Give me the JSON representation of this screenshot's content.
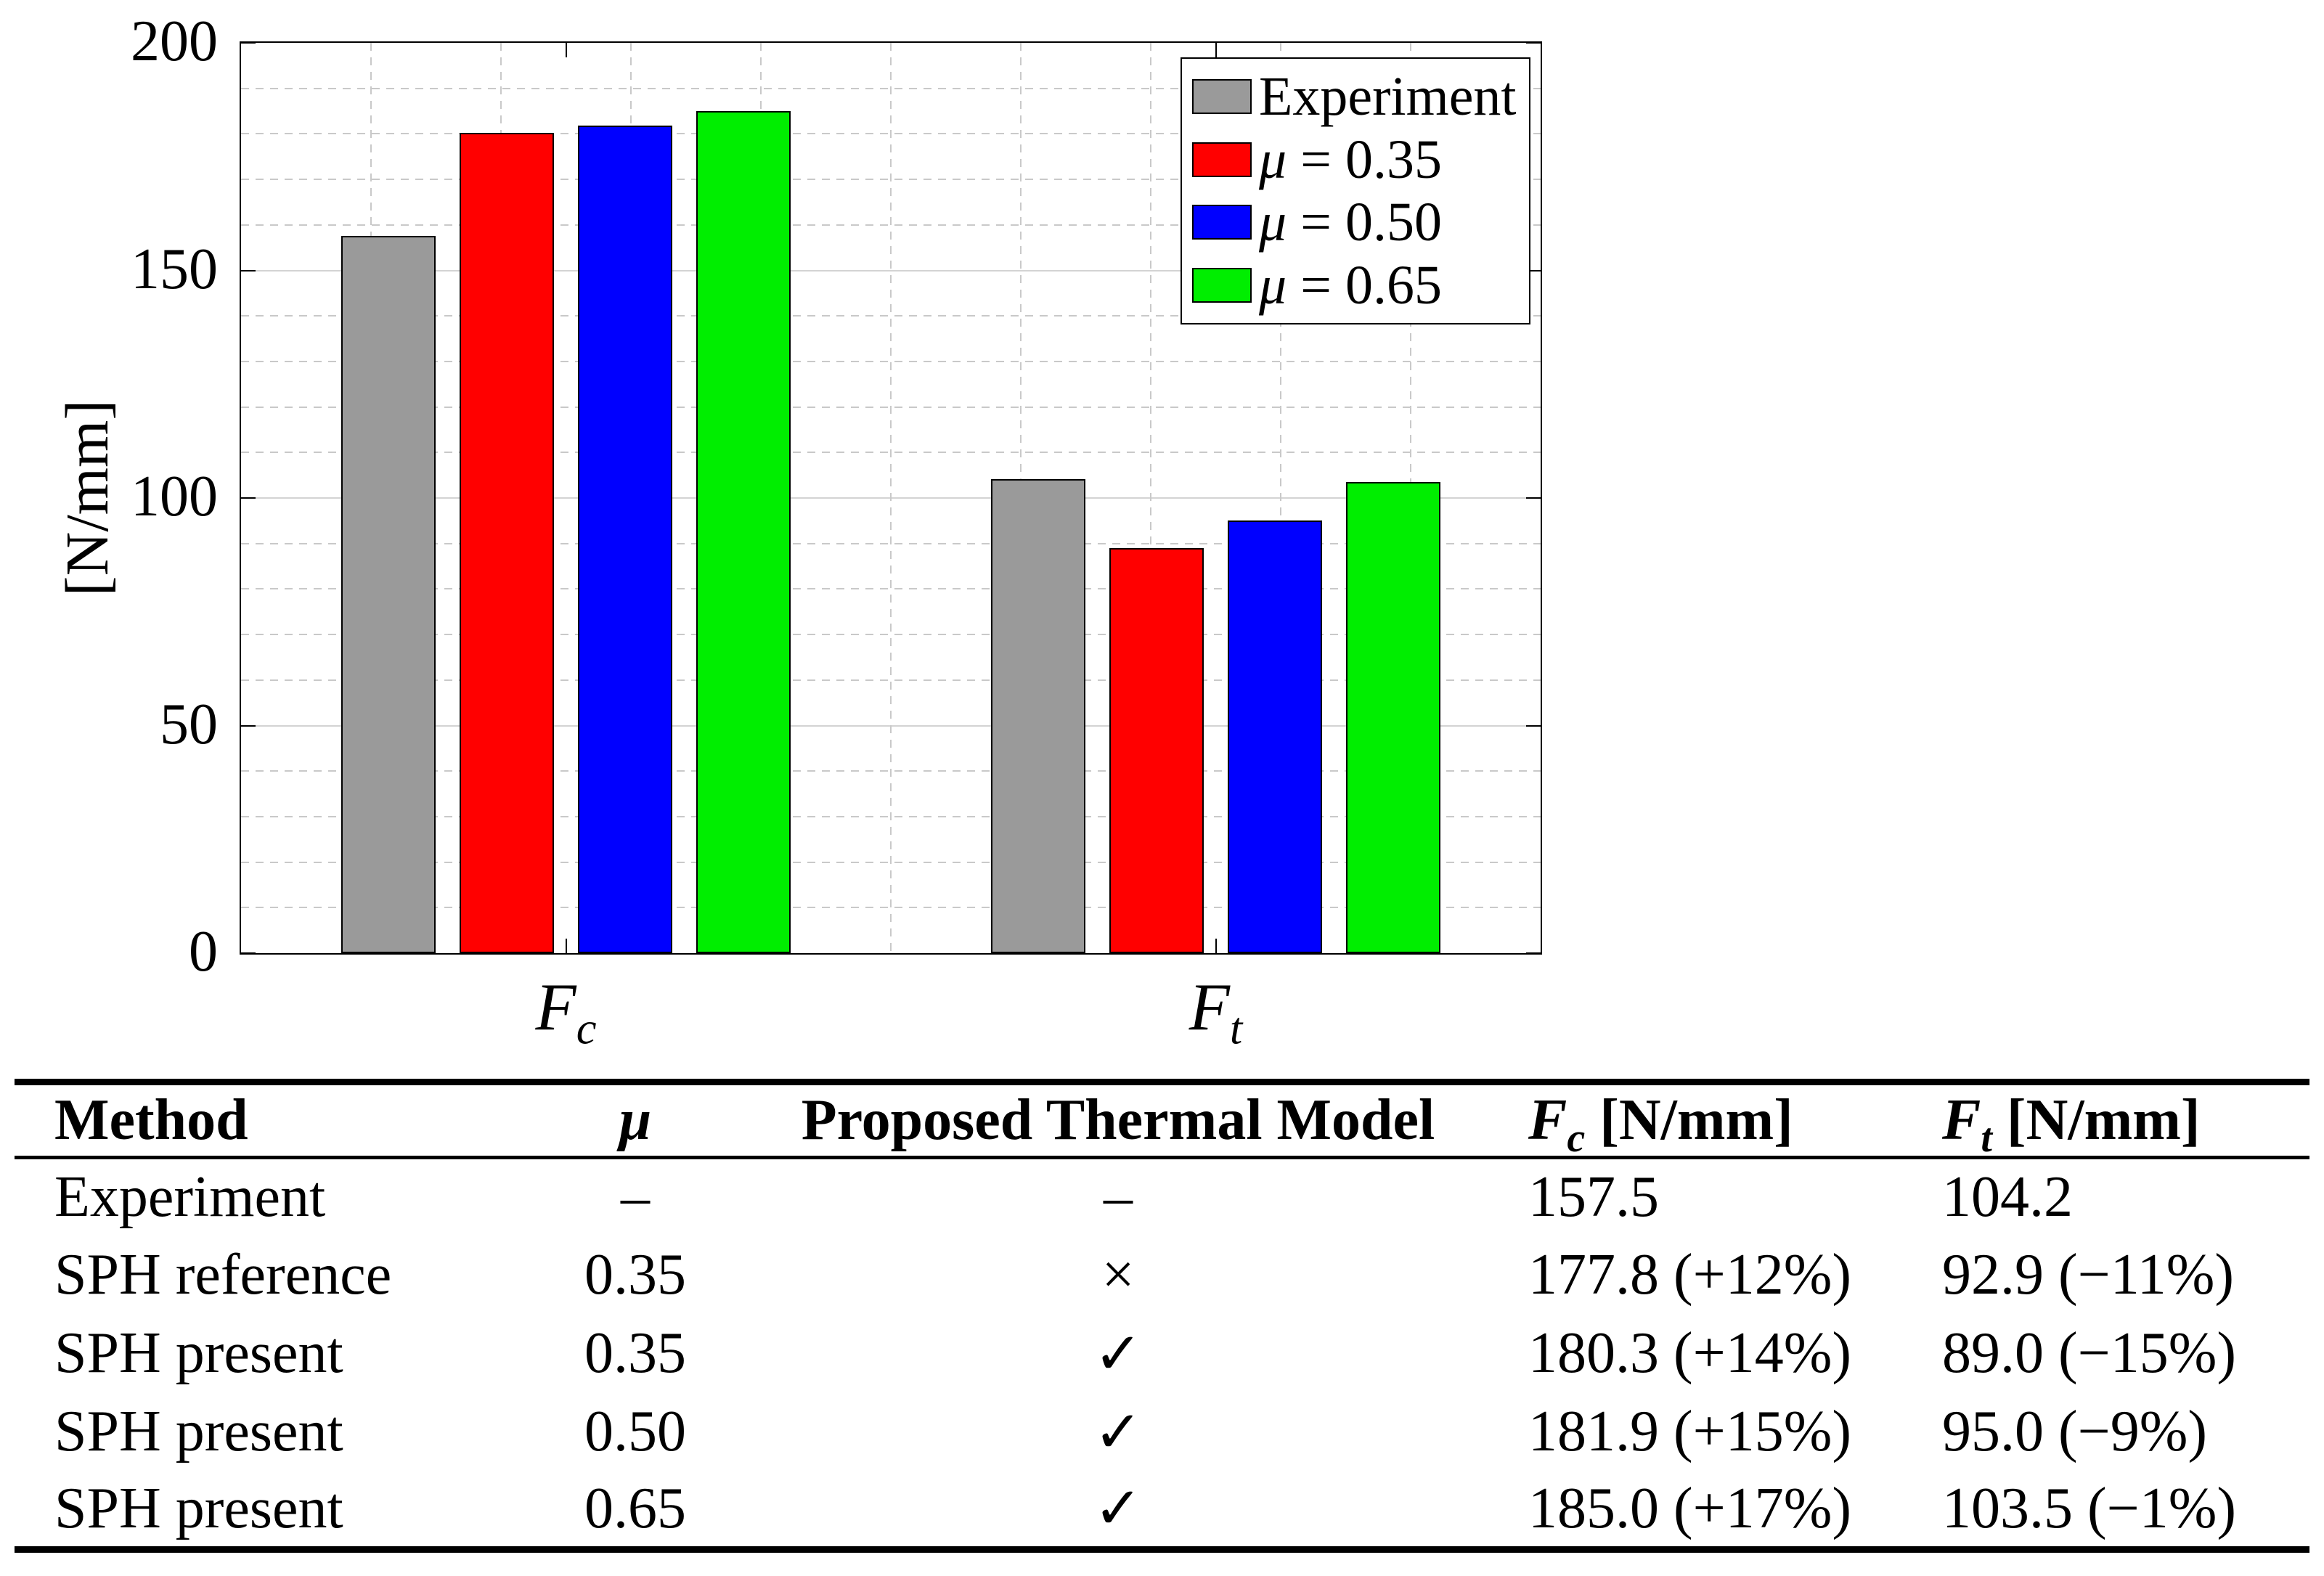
{
  "chart_data": {
    "type": "bar",
    "categories": [
      {
        "base": "F",
        "sub": "c"
      },
      {
        "base": "F",
        "sub": "t"
      }
    ],
    "series": [
      {
        "name": "Experiment",
        "color": "#9a9a9a",
        "values": [
          157.5,
          104.2
        ]
      },
      {
        "name": "μ = 0.35",
        "color": "#ff0000",
        "values": [
          180.3,
          89.0
        ]
      },
      {
        "name": "μ = 0.50",
        "color": "#0000ff",
        "values": [
          181.9,
          95.0
        ]
      },
      {
        "name": "μ = 0.65",
        "color": "#00ee00",
        "values": [
          185.0,
          103.5
        ]
      }
    ],
    "title": "",
    "xlabel": "",
    "ylabel": "[N/mm]",
    "ylim": [
      0,
      200
    ],
    "yticks": [
      0,
      50,
      100,
      150,
      200
    ],
    "y_minor_step": 10,
    "x_minor_step": 0.2,
    "grid": "major solid + minor dashed, light gray",
    "bar_edge_color": "#000000",
    "legend": {
      "position": "top-right-inside",
      "items": [
        {
          "sym": "",
          "rest": "Experiment"
        },
        {
          "sym": "μ",
          "rest": " = 0.35"
        },
        {
          "sym": "μ",
          "rest": " = 0.50"
        },
        {
          "sym": "μ",
          "rest": " = 0.65"
        }
      ]
    }
  },
  "table": {
    "col_method": "Method",
    "col_mu": "μ",
    "col_model": "Proposed Thermal Model",
    "col_fc": {
      "base": "F",
      "sub": "c",
      "unit": " [N/mm]"
    },
    "col_ft": {
      "base": "F",
      "sub": "t",
      "unit": " [N/mm]"
    },
    "rows": [
      {
        "method": "Experiment",
        "mu": "–",
        "model": "–",
        "fc": "157.5",
        "ft": "104.2"
      },
      {
        "method": "SPH reference",
        "mu": "0.35",
        "model": "×",
        "fc": "177.8 (+12%)",
        "ft": "92.9 (−11%)"
      },
      {
        "method": "SPH present",
        "mu": "0.35",
        "model": "✓",
        "fc": "180.3 (+14%)",
        "ft": "89.0 (−15%)"
      },
      {
        "method": "SPH present",
        "mu": "0.50",
        "model": "✓",
        "fc": "181.9 (+15%)",
        "ft": "95.0 (−9%)"
      },
      {
        "method": "SPH present",
        "mu": "0.65",
        "model": "✓",
        "fc": "185.0 (+17%)",
        "ft": "103.5 (−1%)"
      }
    ]
  }
}
